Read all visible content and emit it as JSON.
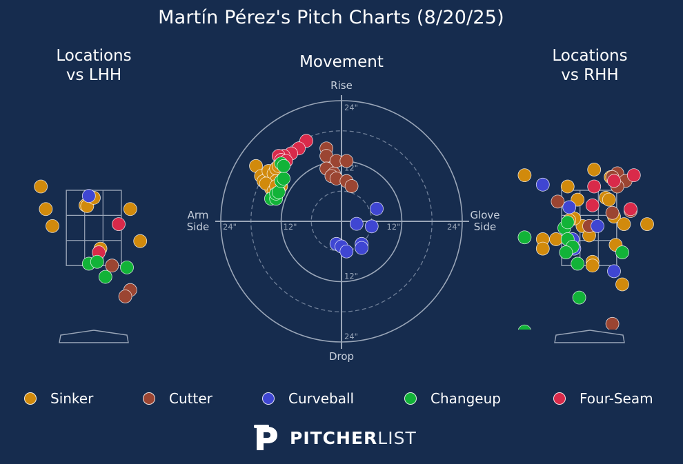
{
  "title": "Martín Pérez's Pitch Charts (8/20/25)",
  "colors": {
    "background": "#162c4e",
    "grid": "#9aa6b8",
    "Sinker": "#d18a0c",
    "Cutter": "#9b4532",
    "Curveball": "#3f46d2",
    "Changeup": "#12b338",
    "Four-Seam": "#d92a4a"
  },
  "legend": [
    "Sinker",
    "Cutter",
    "Curveball",
    "Changeup",
    "Four-Seam"
  ],
  "brand": {
    "bold": "PITCHER",
    "light": "LIST",
    "logo": "pitcherlist-p-logo-icon"
  },
  "chart_data": [
    {
      "type": "scatter",
      "title": "Locations\nvs LHH",
      "xlim": [
        -2.0,
        2.0
      ],
      "ylim": [
        -0.2,
        4.8
      ],
      "strike_zone": {
        "x": [
          -0.83,
          0.83
        ],
        "y": [
          1.5,
          3.5
        ]
      },
      "points": [
        {
          "pitch": "Sinker",
          "x": -1.6,
          "y": 3.6
        },
        {
          "pitch": "Sinker",
          "x": -1.45,
          "y": 3.0
        },
        {
          "pitch": "Sinker",
          "x": -1.25,
          "y": 2.55
        },
        {
          "pitch": "Sinker",
          "x": -0.25,
          "y": 3.1
        },
        {
          "pitch": "Sinker",
          "x": -0.2,
          "y": 3.08
        },
        {
          "pitch": "Sinker",
          "x": 0.0,
          "y": 3.3
        },
        {
          "pitch": "Sinker",
          "x": 1.1,
          "y": 3.0
        },
        {
          "pitch": "Sinker",
          "x": 1.4,
          "y": 2.15
        },
        {
          "pitch": "Sinker",
          "x": 0.2,
          "y": 1.95
        },
        {
          "pitch": "Curveball",
          "x": -0.15,
          "y": 3.35
        },
        {
          "pitch": "Four-Seam",
          "x": 0.75,
          "y": 2.6
        },
        {
          "pitch": "Four-Seam",
          "x": 0.15,
          "y": 1.85
        },
        {
          "pitch": "Changeup",
          "x": -0.15,
          "y": 1.55
        },
        {
          "pitch": "Changeup",
          "x": 0.1,
          "y": 1.6
        },
        {
          "pitch": "Changeup",
          "x": 0.35,
          "y": 1.2
        },
        {
          "pitch": "Changeup",
          "x": 1.0,
          "y": 1.45
        },
        {
          "pitch": "Cutter",
          "x": 0.55,
          "y": 1.5
        },
        {
          "pitch": "Cutter",
          "x": 1.1,
          "y": 0.85
        },
        {
          "pitch": "Cutter",
          "x": 0.95,
          "y": 0.68
        }
      ]
    },
    {
      "type": "scatter",
      "title": "Movement",
      "xlim": [
        -24,
        24
      ],
      "ylim": [
        -24,
        24
      ],
      "rings": [
        12,
        24
      ],
      "dashed_rings": [
        6,
        18
      ],
      "axis_labels": {
        "top": "Rise",
        "bottom": "Drop",
        "left": "Arm\nSide",
        "right": "Glove\nSide"
      },
      "ring_labels": [
        "24\"",
        "12\"",
        "12\"",
        "24\""
      ],
      "radial_labels": [
        "24\"",
        "12\"",
        "12\"",
        "24\""
      ],
      "points": [
        {
          "pitch": "Four-Seam",
          "x": -7.0,
          "y": 16.0
        },
        {
          "pitch": "Four-Seam",
          "x": -8.5,
          "y": 14.5
        },
        {
          "pitch": "Four-Seam",
          "x": -10.0,
          "y": 13.5
        },
        {
          "pitch": "Four-Seam",
          "x": -11.5,
          "y": 13.0
        },
        {
          "pitch": "Four-Seam",
          "x": -12.5,
          "y": 13.0
        },
        {
          "pitch": "Four-Seam",
          "x": -12.0,
          "y": 12.2
        },
        {
          "pitch": "Four-Seam",
          "x": -11.0,
          "y": 12.0
        },
        {
          "pitch": "Sinker",
          "x": -17.0,
          "y": 11.0
        },
        {
          "pitch": "Sinker",
          "x": -16.0,
          "y": 9.0
        },
        {
          "pitch": "Sinker",
          "x": -15.5,
          "y": 8.0
        },
        {
          "pitch": "Sinker",
          "x": -14.0,
          "y": 8.5
        },
        {
          "pitch": "Sinker",
          "x": -14.5,
          "y": 10.0
        },
        {
          "pitch": "Sinker",
          "x": -13.5,
          "y": 9.5
        },
        {
          "pitch": "Sinker",
          "x": -13.0,
          "y": 10.5
        },
        {
          "pitch": "Sinker",
          "x": -12.5,
          "y": 11.0
        },
        {
          "pitch": "Sinker",
          "x": -13.0,
          "y": 8.0
        },
        {
          "pitch": "Sinker",
          "x": -12.0,
          "y": 7.0
        },
        {
          "pitch": "Sinker",
          "x": -14.0,
          "y": 6.5
        },
        {
          "pitch": "Sinker",
          "x": -15.0,
          "y": 7.5
        },
        {
          "pitch": "Sinker",
          "x": -13.5,
          "y": 6.0
        },
        {
          "pitch": "Sinker",
          "x": -12.5,
          "y": 6.0
        },
        {
          "pitch": "Sinker",
          "x": -13.0,
          "y": 7.0
        },
        {
          "pitch": "Changeup",
          "x": -14.0,
          "y": 4.5
        },
        {
          "pitch": "Changeup",
          "x": -13.0,
          "y": 4.5
        },
        {
          "pitch": "Changeup",
          "x": -13.0,
          "y": 5.5
        },
        {
          "pitch": "Changeup",
          "x": -12.5,
          "y": 5.8
        },
        {
          "pitch": "Changeup",
          "x": -12.0,
          "y": 8.0
        },
        {
          "pitch": "Changeup",
          "x": -11.5,
          "y": 8.5
        },
        {
          "pitch": "Changeup",
          "x": -12.0,
          "y": 11.5
        },
        {
          "pitch": "Changeup",
          "x": -11.5,
          "y": 11.0
        },
        {
          "pitch": "Cutter",
          "x": -3.0,
          "y": 14.5
        },
        {
          "pitch": "Cutter",
          "x": -3.0,
          "y": 13.0
        },
        {
          "pitch": "Cutter",
          "x": -1.0,
          "y": 12.0
        },
        {
          "pitch": "Cutter",
          "x": 1.0,
          "y": 12.0
        },
        {
          "pitch": "Cutter",
          "x": -3.0,
          "y": 10.5
        },
        {
          "pitch": "Cutter",
          "x": -1.5,
          "y": 9.5
        },
        {
          "pitch": "Cutter",
          "x": -2.0,
          "y": 9.0
        },
        {
          "pitch": "Cutter",
          "x": -1.0,
          "y": 8.5
        },
        {
          "pitch": "Cutter",
          "x": 1.0,
          "y": 8.0
        },
        {
          "pitch": "Cutter",
          "x": 2.0,
          "y": 7.0
        },
        {
          "pitch": "Curveball",
          "x": 7.0,
          "y": 2.5
        },
        {
          "pitch": "Curveball",
          "x": 3.0,
          "y": -0.5
        },
        {
          "pitch": "Curveball",
          "x": 6.0,
          "y": -1.0
        },
        {
          "pitch": "Curveball",
          "x": -1.0,
          "y": -4.5
        },
        {
          "pitch": "Curveball",
          "x": 0.0,
          "y": -5.0
        },
        {
          "pitch": "Curveball",
          "x": 1.0,
          "y": -6.0
        },
        {
          "pitch": "Curveball",
          "x": 4.0,
          "y": -4.5
        },
        {
          "pitch": "Curveball",
          "x": 4.0,
          "y": -5.3
        }
      ]
    },
    {
      "type": "scatter",
      "title": "Locations\nvs RHH",
      "xlim": [
        -2.0,
        2.0
      ],
      "ylim": [
        -0.2,
        4.8
      ],
      "strike_zone": {
        "x": [
          -0.83,
          0.83
        ],
        "y": [
          1.5,
          3.5
        ]
      },
      "points": [
        {
          "pitch": "Sinker",
          "x": -1.95,
          "y": 3.9
        },
        {
          "pitch": "Sinker",
          "x": -0.65,
          "y": 3.6
        },
        {
          "pitch": "Sinker",
          "x": -0.35,
          "y": 3.25
        },
        {
          "pitch": "Sinker",
          "x": 0.15,
          "y": 4.05
        },
        {
          "pitch": "Sinker",
          "x": 0.65,
          "y": 3.85
        },
        {
          "pitch": "Sinker",
          "x": 0.5,
          "y": 3.3
        },
        {
          "pitch": "Sinker",
          "x": 0.6,
          "y": 3.25
        },
        {
          "pitch": "Sinker",
          "x": 0.75,
          "y": 2.8
        },
        {
          "pitch": "Sinker",
          "x": -0.2,
          "y": 2.55
        },
        {
          "pitch": "Sinker",
          "x": -0.45,
          "y": 2.75
        },
        {
          "pitch": "Sinker",
          "x": -0.6,
          "y": 2.7
        },
        {
          "pitch": "Sinker",
          "x": 0.0,
          "y": 2.3
        },
        {
          "pitch": "Sinker",
          "x": 1.05,
          "y": 2.6
        },
        {
          "pitch": "Sinker",
          "x": 1.75,
          "y": 2.6
        },
        {
          "pitch": "Sinker",
          "x": -1.0,
          "y": 2.2
        },
        {
          "pitch": "Sinker",
          "x": -1.4,
          "y": 2.2
        },
        {
          "pitch": "Sinker",
          "x": -1.4,
          "y": 1.95
        },
        {
          "pitch": "Sinker",
          "x": 0.8,
          "y": 2.05
        },
        {
          "pitch": "Sinker",
          "x": 0.1,
          "y": 1.6
        },
        {
          "pitch": "Sinker",
          "x": 0.1,
          "y": 1.5
        },
        {
          "pitch": "Sinker",
          "x": 1.0,
          "y": 1.0
        },
        {
          "pitch": "Cutter",
          "x": 0.85,
          "y": 3.95
        },
        {
          "pitch": "Cutter",
          "x": 0.7,
          "y": 3.85
        },
        {
          "pitch": "Cutter",
          "x": 1.1,
          "y": 3.75
        },
        {
          "pitch": "Cutter",
          "x": 0.85,
          "y": 3.6
        },
        {
          "pitch": "Cutter",
          "x": -0.95,
          "y": 3.2
        },
        {
          "pitch": "Cutter",
          "x": 0.7,
          "y": 2.9
        },
        {
          "pitch": "Cutter",
          "x": 1.25,
          "y": 2.95
        },
        {
          "pitch": "Cutter",
          "x": 0.0,
          "y": 2.55
        },
        {
          "pitch": "Cutter",
          "x": 0.7,
          "y": -0.05
        },
        {
          "pitch": "Four-Seam",
          "x": 0.75,
          "y": 3.75
        },
        {
          "pitch": "Four-Seam",
          "x": 1.35,
          "y": 3.9
        },
        {
          "pitch": "Four-Seam",
          "x": 0.15,
          "y": 3.6
        },
        {
          "pitch": "Four-Seam",
          "x": 0.1,
          "y": 3.1
        },
        {
          "pitch": "Four-Seam",
          "x": 1.25,
          "y": 3.0
        },
        {
          "pitch": "Curveball",
          "x": -1.4,
          "y": 3.65
        },
        {
          "pitch": "Curveball",
          "x": -0.6,
          "y": 3.05
        },
        {
          "pitch": "Curveball",
          "x": 0.25,
          "y": 2.55
        },
        {
          "pitch": "Curveball",
          "x": -0.5,
          "y": 2.2
        },
        {
          "pitch": "Curveball",
          "x": -0.45,
          "y": 1.95
        },
        {
          "pitch": "Curveball",
          "x": 0.75,
          "y": 1.35
        },
        {
          "pitch": "Changeup",
          "x": -0.75,
          "y": 2.5
        },
        {
          "pitch": "Changeup",
          "x": -0.65,
          "y": 2.65
        },
        {
          "pitch": "Changeup",
          "x": -0.65,
          "y": 2.2
        },
        {
          "pitch": "Changeup",
          "x": -1.95,
          "y": 2.25
        },
        {
          "pitch": "Changeup",
          "x": -0.5,
          "y": 2.0
        },
        {
          "pitch": "Changeup",
          "x": -0.7,
          "y": 1.85
        },
        {
          "pitch": "Changeup",
          "x": -0.35,
          "y": 1.55
        },
        {
          "pitch": "Changeup",
          "x": 1.0,
          "y": 1.85
        },
        {
          "pitch": "Changeup",
          "x": -0.3,
          "y": 0.65
        },
        {
          "pitch": "Changeup",
          "x": -1.95,
          "y": -0.25
        }
      ]
    }
  ]
}
